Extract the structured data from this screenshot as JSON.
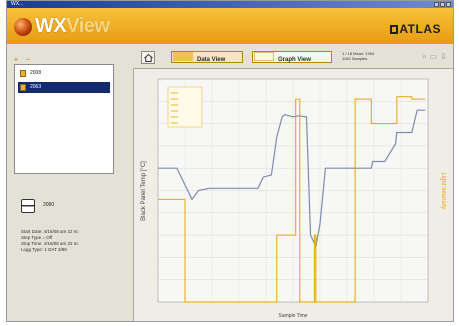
{
  "window": {
    "title": "WX..."
  },
  "app": {
    "name_bold": "WX",
    "name_light": "View",
    "brand": "ATLAS"
  },
  "left_tools": {
    "add_icon": "plus-icon",
    "remove_icon": "minus-icon"
  },
  "tree": {
    "items": [
      {
        "label": "2008",
        "selected": false
      },
      {
        "label": "2063",
        "selected": true
      }
    ]
  },
  "device": {
    "label": "2060"
  },
  "info": {
    "lines": [
      "Start Date: 4/16/08 am 22 nc",
      "Step Type = Off",
      "Stop Time: 4/16/08 am 22 nc",
      "Logg Type: 1 DAT 3/89"
    ]
  },
  "toolbar": {
    "data_view_label": "Data View",
    "graph_view_label": "Graph View",
    "info_line1": "1 / 18 Mean: 1994",
    "info_line2": "1169 Samples"
  },
  "chart_data": {
    "type": "line",
    "title": "",
    "xlabel": "Sample Time",
    "ylabel": "Black Panel Temp [°C]",
    "y2label": "Light Intensity",
    "grid": true,
    "xlim": [
      0,
      100
    ],
    "ylim": [
      0,
      100
    ],
    "legend_entries": [
      "",
      "",
      "",
      "",
      "",
      ""
    ],
    "legend_placement": "top-left",
    "x_tick_labels": [
      "",
      "",
      "",
      "",
      "",
      "",
      "",
      "",
      "",
      ""
    ],
    "series": [
      {
        "color": "#7d8aa8",
        "axis": "left",
        "x": [
          0,
          7,
          11,
          12.6,
          15,
          19,
          27,
          35,
          37,
          39,
          42,
          44,
          46,
          47,
          50,
          52,
          55,
          56.5,
          58.5,
          60,
          62,
          65,
          73,
          76,
          79,
          79.5,
          84,
          88,
          88.4,
          94,
          96,
          99
        ],
        "y": [
          60,
          60,
          50,
          46,
          50,
          51,
          51,
          51,
          51,
          56,
          57,
          74,
          83,
          84,
          83,
          83.5,
          83,
          30,
          25,
          35,
          60,
          60,
          60,
          60,
          60,
          63,
          63,
          71,
          76,
          76,
          86,
          86
        ]
      },
      {
        "color": "#e8a400",
        "axis": "right",
        "x": [
          0,
          10,
          10,
          44,
          44,
          51,
          51,
          52.5,
          52.5,
          58,
          58,
          58.5,
          58.5,
          73,
          73,
          79,
          79,
          88.5,
          88.5,
          94,
          94,
          99
        ],
        "y": [
          46,
          46,
          0,
          0,
          30,
          30,
          91,
          91,
          0,
          0,
          30,
          30,
          0,
          0,
          91,
          91,
          80,
          80,
          92,
          92,
          91,
          91
        ]
      }
    ]
  },
  "colors": {
    "banner": "#f0b030",
    "accent": "#e8a400",
    "selection": "#142a6e",
    "line_temp": "#7d8aa8"
  }
}
